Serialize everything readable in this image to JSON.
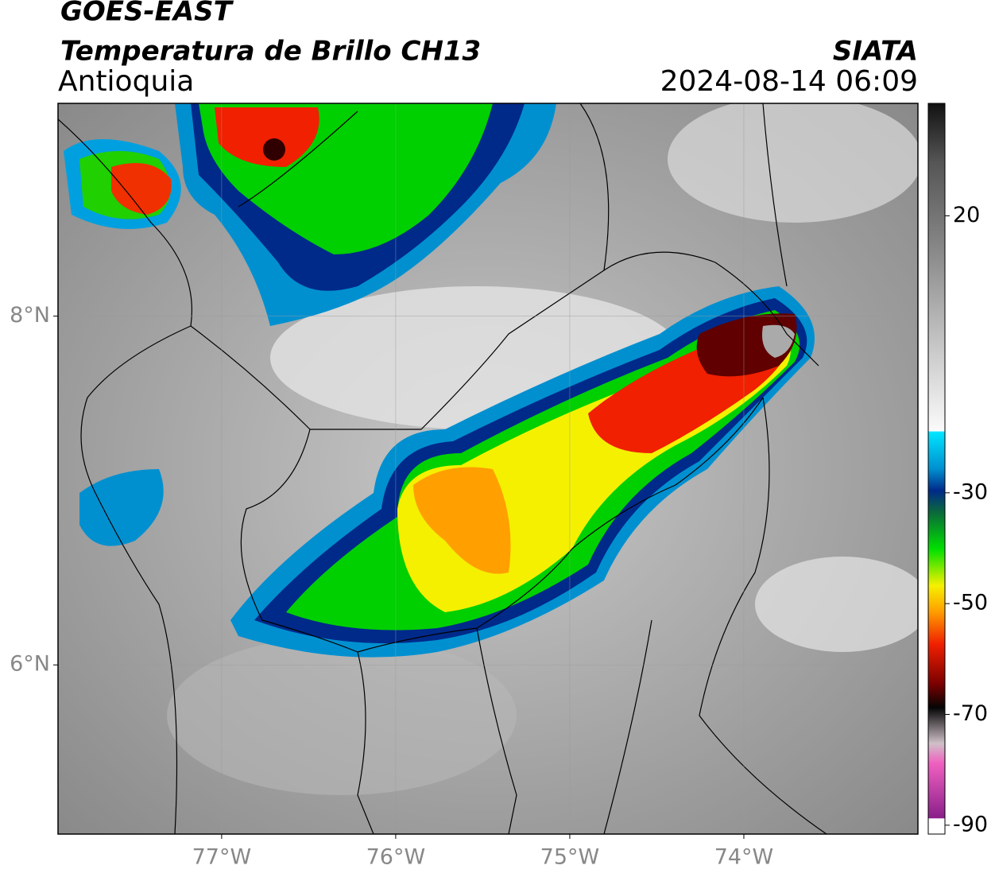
{
  "header": {
    "satellite": "GOES-EAST",
    "product": "Temperatura de Brillo CH13",
    "region": "Antioquia",
    "source": "SIATA",
    "datetime": "2024-08-14 06:09"
  },
  "map": {
    "xlim": [
      -77.94,
      -73.0
    ],
    "ylim": [
      5.03,
      9.22
    ],
    "grid": true,
    "xticks": [
      {
        "value": -77,
        "label": "77°W"
      },
      {
        "value": -76,
        "label": "76°W"
      },
      {
        "value": -75,
        "label": "75°W"
      },
      {
        "value": -74,
        "label": "74°W"
      }
    ],
    "yticks": [
      {
        "value": 6,
        "label": "6°N"
      },
      {
        "value": 8,
        "label": "8°N"
      }
    ]
  },
  "colorbar": {
    "lim": [
      -91.6,
      40.3
    ],
    "ticks": [
      20,
      -30,
      -50,
      -70,
      -90
    ]
  }
}
